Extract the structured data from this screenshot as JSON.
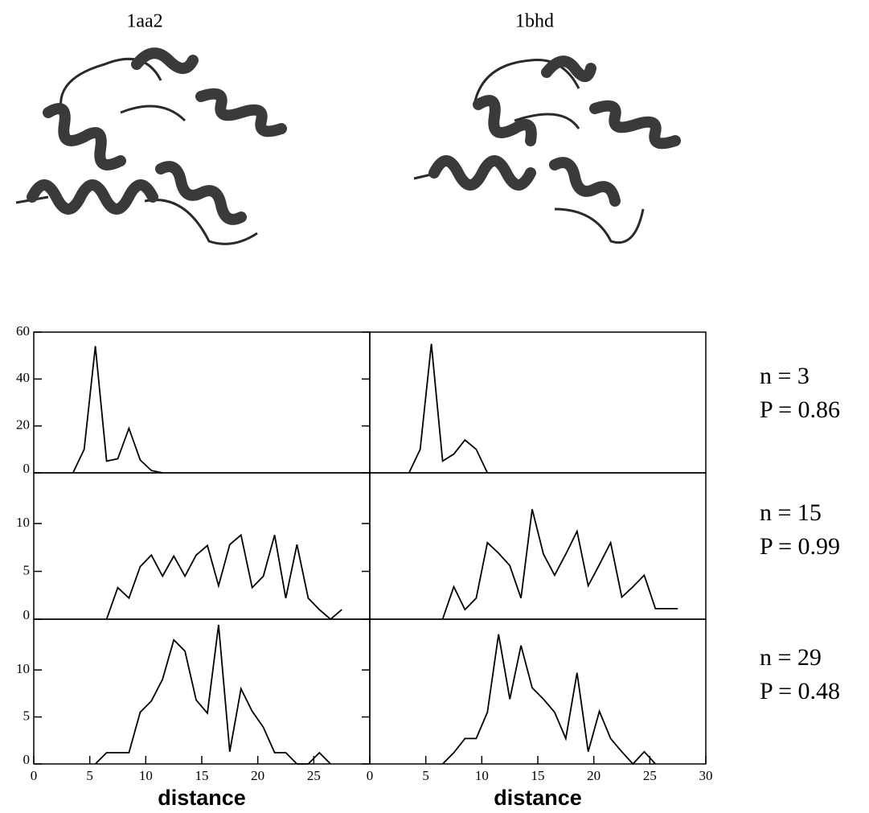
{
  "column_titles": [
    "1aa2",
    "1bhd"
  ],
  "row_labels": [
    {
      "n": "n = 3",
      "p": "P = 0.86"
    },
    {
      "n": "n = 15",
      "p": "P = 0.99"
    },
    {
      "n": "n = 29",
      "p": "P = 0.48"
    }
  ],
  "chart_data": [
    {
      "type": "line",
      "color": "#000000",
      "xlim": [
        0,
        30
      ],
      "ylim": [
        0,
        60
      ],
      "yticks": [
        0,
        20,
        40,
        60
      ],
      "x": [
        3.5,
        4.5,
        5.5,
        6.5,
        7.5,
        8.5,
        9.5,
        10.5,
        11.5
      ],
      "values": [
        0,
        10,
        54,
        5,
        6,
        19,
        5.5,
        1,
        0
      ]
    },
    {
      "type": "line",
      "color": "#000000",
      "xlim": [
        0,
        30
      ],
      "ylim": [
        0,
        60
      ],
      "x": [
        3.5,
        4.5,
        5.5,
        6.5,
        7.5,
        8.5,
        9.5,
        10.5
      ],
      "values": [
        0,
        10,
        55,
        5,
        8,
        14,
        10,
        0
      ]
    },
    {
      "type": "line",
      "color": "#000000",
      "xlim": [
        0,
        30
      ],
      "ylim": [
        0,
        15.3
      ],
      "yticks": [
        0,
        5,
        10
      ],
      "x": [
        6.5,
        7.5,
        8.5,
        9.5,
        10.5,
        11.5,
        12.5,
        13.5,
        14.5,
        15.5,
        16.5,
        17.5,
        18.5,
        19.5,
        20.5,
        21.5,
        22.5,
        23.5,
        24.5,
        25.5,
        26.5,
        27.5
      ],
      "values": [
        0,
        3.3,
        2.2,
        5.5,
        6.7,
        4.5,
        6.6,
        4.5,
        6.7,
        7.7,
        3.5,
        7.8,
        8.8,
        3.3,
        4.5,
        8.8,
        2.2,
        7.8,
        2.2,
        1,
        0,
        1
      ]
    },
    {
      "type": "line",
      "color": "#000000",
      "xlim": [
        0,
        30
      ],
      "ylim": [
        0,
        15.3
      ],
      "x": [
        6.5,
        7.5,
        8.5,
        9.5,
        10.5,
        11.5,
        12.5,
        13.5,
        14.5,
        15.5,
        16.5,
        17.5,
        18.5,
        19.5,
        20.5,
        21.5,
        22.5,
        23.5,
        24.5,
        25.5,
        26.5,
        27.5
      ],
      "values": [
        0,
        3.4,
        1,
        2.2,
        8,
        6.9,
        5.6,
        2.2,
        11.5,
        6.8,
        4.6,
        6.8,
        9.2,
        3.5,
        5.7,
        8,
        2.3,
        3.4,
        4.6,
        1.1,
        1.1,
        1.1
      ]
    },
    {
      "type": "line",
      "color": "#000000",
      "xlim": [
        0,
        30
      ],
      "ylim": [
        0,
        15.4
      ],
      "yticks": [
        0,
        5,
        10
      ],
      "xticks": [
        0,
        5,
        10,
        15,
        20,
        25
      ],
      "xlabel": "distance",
      "x": [
        5.5,
        6.5,
        7.5,
        8.5,
        9.5,
        10.5,
        11.5,
        12.5,
        13.5,
        14.5,
        15.5,
        16.5,
        17.5,
        18.5,
        19.5,
        20.5,
        21.5,
        22.5,
        23.5,
        24.5,
        25.5,
        26.5
      ],
      "values": [
        0,
        1.2,
        1.2,
        1.2,
        5.5,
        6.7,
        9,
        13.2,
        12,
        6.8,
        5.4,
        14.8,
        1.3,
        8,
        5.6,
        3.9,
        1.2,
        1.2,
        0,
        0,
        1.2,
        0
      ]
    },
    {
      "type": "line",
      "color": "#000000",
      "xlim": [
        0,
        30
      ],
      "ylim": [
        0,
        15.4
      ],
      "xticks": [
        0,
        5,
        10,
        15,
        20,
        25,
        30
      ],
      "xlabel": "distance",
      "x": [
        6.5,
        7.5,
        8.5,
        9.5,
        10.5,
        11.5,
        12.5,
        13.5,
        14.5,
        15.5,
        16.5,
        17.5,
        18.5,
        19.5,
        20.5,
        21.5,
        22.5,
        23.5,
        24.5,
        25.5
      ],
      "values": [
        0,
        1.2,
        2.7,
        2.7,
        5.5,
        13.8,
        6.9,
        12.6,
        8.1,
        6.9,
        5.5,
        2.7,
        9.7,
        1.3,
        5.6,
        2.7,
        1.3,
        0,
        1.3,
        0
      ]
    }
  ]
}
